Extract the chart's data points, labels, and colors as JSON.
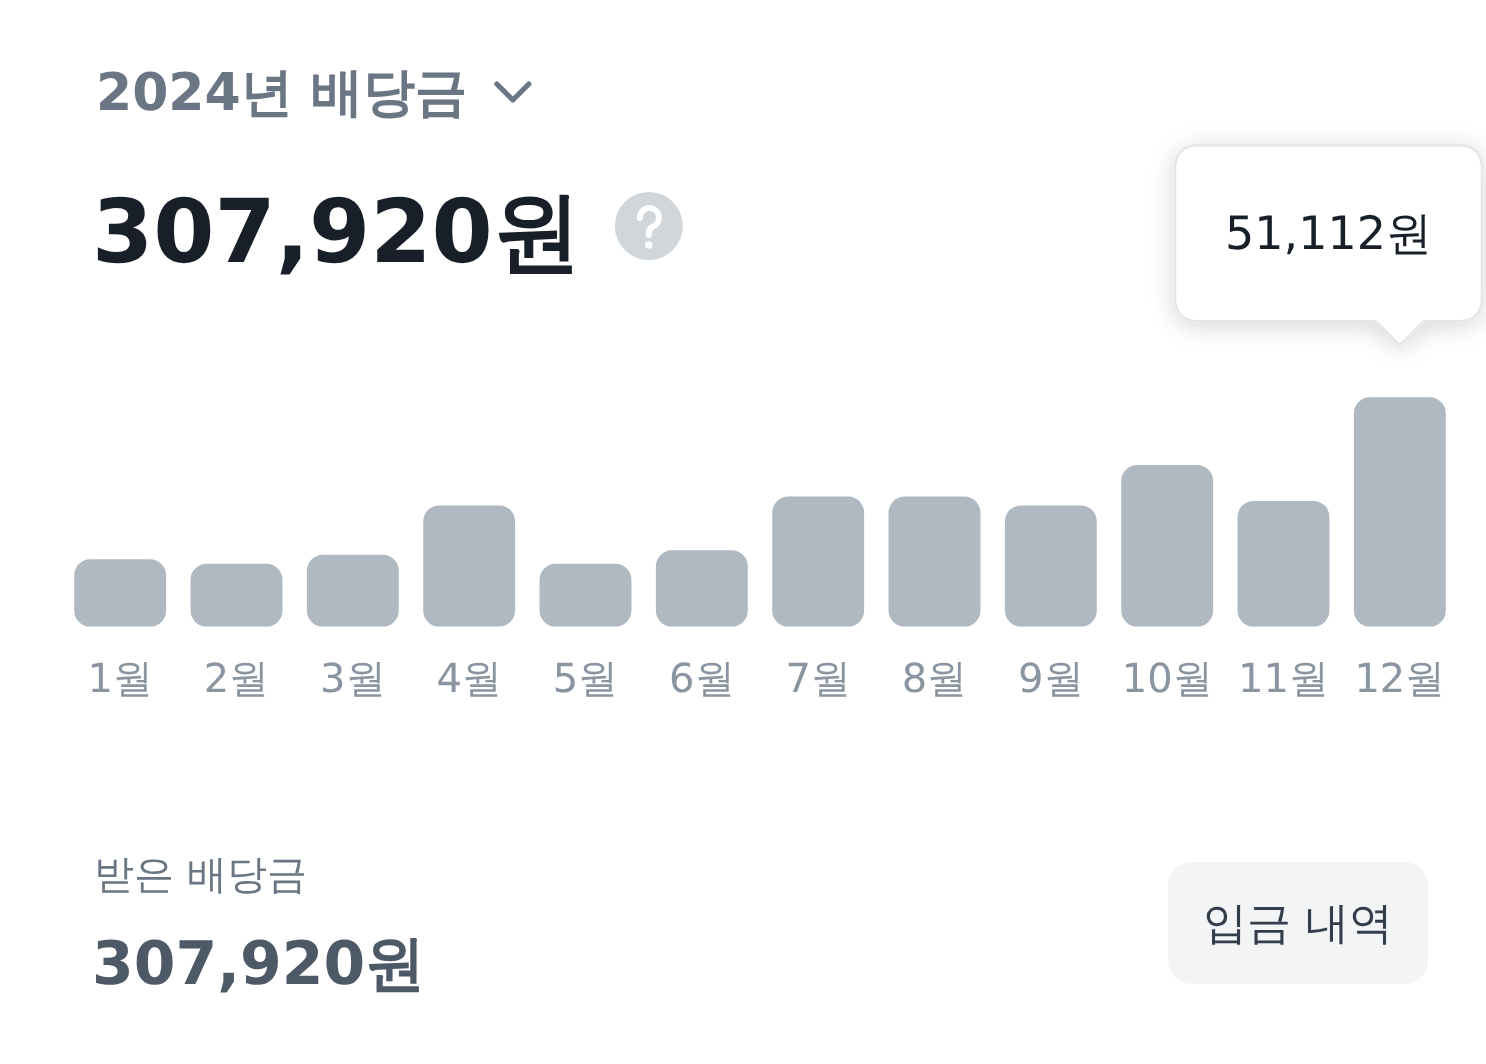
{
  "chart_data": {
    "type": "bar",
    "title": "2024년 배당금",
    "subtitle": "307,920원",
    "categories": [
      "1월",
      "2월",
      "3월",
      "4월",
      "5월",
      "6월",
      "7월",
      "8월",
      "9월",
      "10월",
      "11월",
      "12월"
    ],
    "values": [
      15000,
      14000,
      16000,
      27000,
      14000,
      17000,
      29000,
      29000,
      27000,
      36000,
      28000,
      51112
    ],
    "value_labels": [
      null,
      null,
      null,
      null,
      null,
      null,
      null,
      null,
      null,
      null,
      null,
      "51,112원"
    ],
    "color": "#b0b8c1",
    "tick_labels": "x",
    "annotations": [
      "받은 배당금",
      "307,920원",
      "입금 내역"
    ]
  }
}
